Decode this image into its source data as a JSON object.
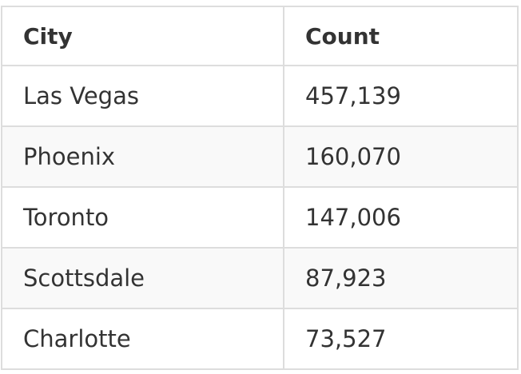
{
  "table": {
    "headers": [
      "City",
      "Count"
    ],
    "rows": [
      [
        "Las Vegas",
        "457,139"
      ],
      [
        "Phoenix",
        "160,070"
      ],
      [
        "Toronto",
        "147,006"
      ],
      [
        "Scottsdale",
        "87,923"
      ],
      [
        "Charlotte",
        "73,527"
      ]
    ]
  },
  "colors": {
    "border": "#dddddd",
    "stripe": "#f9f9f9",
    "text": "#333333"
  }
}
